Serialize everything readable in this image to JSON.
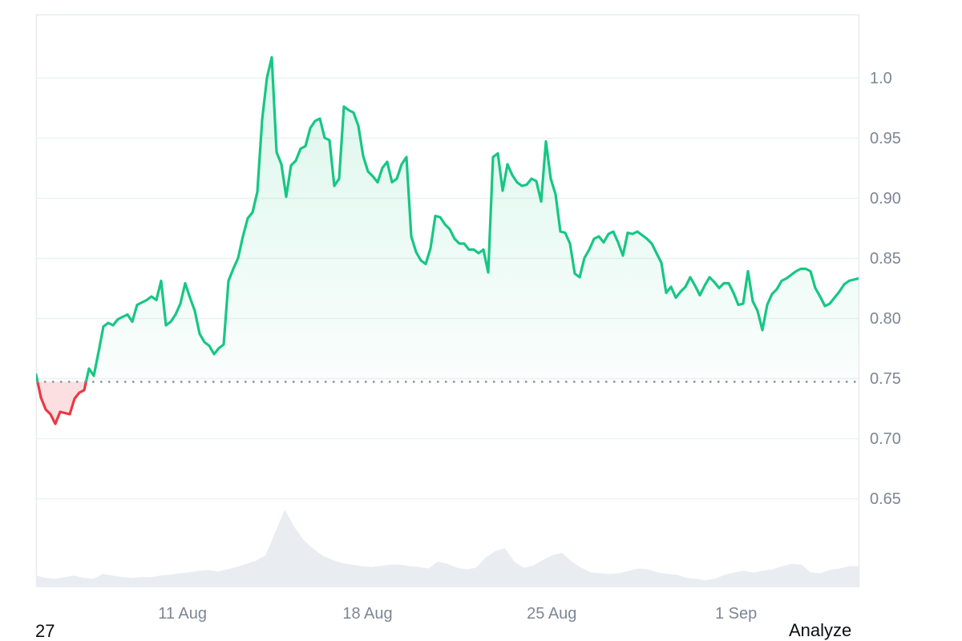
{
  "page": {
    "bottom_left_text": "27",
    "bottom_right_text": "Analyze"
  },
  "chart_data": {
    "type": "area",
    "title": "",
    "xlabel": "",
    "ylabel": "",
    "grid": true,
    "legend": false,
    "x_tick_labels": [
      "11 Aug",
      "18 Aug",
      "25 Aug",
      "1 Sep"
    ],
    "x_tick_positions": [
      0.178,
      0.403,
      0.627,
      0.851
    ],
    "y_ticks": [
      1.0,
      0.95,
      0.9,
      0.85,
      0.8,
      0.75,
      0.7,
      0.65
    ],
    "y_tick_labels": [
      "1.0",
      "0.95",
      "0.90",
      "0.85",
      "0.80",
      "0.75",
      "0.70",
      "0.65"
    ],
    "baseline_price": 0.747,
    "colors": {
      "up_line": "#16c784",
      "up_fill_top": "rgba(22,199,132,0.16)",
      "up_fill_bottom": "rgba(22,199,132,0.02)",
      "down_line": "#ea3943",
      "down_fill": "rgba(234,57,67,0.16)",
      "volume_fill": "#e9edf2",
      "grid_line": "#eef1f4",
      "axis_border": "#e7eaed",
      "tick_label": "#7d8694",
      "baseline_dots": "#8d949c"
    },
    "price_series": {
      "prices": [
        0.753,
        0.734,
        0.724,
        0.72,
        0.712,
        0.722,
        0.721,
        0.72,
        0.733,
        0.738,
        0.74,
        0.758,
        0.752,
        0.772,
        0.793,
        0.796,
        0.794,
        0.799,
        0.801,
        0.803,
        0.797,
        0.811,
        0.813,
        0.815,
        0.818,
        0.815,
        0.831,
        0.794,
        0.797,
        0.803,
        0.812,
        0.829,
        0.817,
        0.806,
        0.787,
        0.78,
        0.777,
        0.77,
        0.775,
        0.778,
        0.831,
        0.841,
        0.85,
        0.868,
        0.883,
        0.888,
        0.905,
        0.965,
        1.0,
        1.017,
        0.938,
        0.928,
        0.901,
        0.927,
        0.931,
        0.941,
        0.943,
        0.958,
        0.964,
        0.966,
        0.95,
        0.948,
        0.91,
        0.916,
        0.976,
        0.973,
        0.971,
        0.96,
        0.935,
        0.922,
        0.918,
        0.913,
        0.925,
        0.93,
        0.913,
        0.916,
        0.928,
        0.934,
        0.868,
        0.855,
        0.848,
        0.845,
        0.858,
        0.885,
        0.884,
        0.878,
        0.874,
        0.866,
        0.862,
        0.862,
        0.857,
        0.857,
        0.854,
        0.857,
        0.838,
        0.934,
        0.937,
        0.906,
        0.928,
        0.919,
        0.913,
        0.91,
        0.911,
        0.916,
        0.914,
        0.897,
        0.947,
        0.916,
        0.903,
        0.872,
        0.871,
        0.862,
        0.837,
        0.834,
        0.85,
        0.857,
        0.866,
        0.868,
        0.863,
        0.87,
        0.872,
        0.863,
        0.852,
        0.871,
        0.87,
        0.872,
        0.869,
        0.866,
        0.862,
        0.854,
        0.846,
        0.821,
        0.826,
        0.817,
        0.822,
        0.826,
        0.834,
        0.827,
        0.819,
        0.827,
        0.834,
        0.83,
        0.825,
        0.829,
        0.829,
        0.821,
        0.811,
        0.812,
        0.839,
        0.814,
        0.806,
        0.79,
        0.811,
        0.82,
        0.824,
        0.831,
        0.833,
        0.836,
        0.839,
        0.841,
        0.841,
        0.839,
        0.825,
        0.818,
        0.81,
        0.812,
        0.817,
        0.822,
        0.828,
        0.831,
        0.832,
        0.833
      ]
    },
    "volume_series": {
      "values_normalized": [
        0.15,
        0.12,
        0.11,
        0.13,
        0.15,
        0.12,
        0.11,
        0.17,
        0.15,
        0.13,
        0.12,
        0.13,
        0.13,
        0.15,
        0.16,
        0.18,
        0.19,
        0.21,
        0.22,
        0.2,
        0.23,
        0.26,
        0.3,
        0.34,
        0.41,
        0.7,
        0.99,
        0.77,
        0.6,
        0.49,
        0.4,
        0.35,
        0.31,
        0.29,
        0.27,
        0.26,
        0.27,
        0.29,
        0.29,
        0.27,
        0.26,
        0.24,
        0.33,
        0.3,
        0.25,
        0.23,
        0.25,
        0.38,
        0.46,
        0.5,
        0.33,
        0.25,
        0.28,
        0.35,
        0.41,
        0.44,
        0.33,
        0.25,
        0.19,
        0.18,
        0.17,
        0.18,
        0.21,
        0.24,
        0.23,
        0.19,
        0.17,
        0.16,
        0.12,
        0.11,
        0.09,
        0.11,
        0.16,
        0.19,
        0.21,
        0.19,
        0.21,
        0.23,
        0.27,
        0.3,
        0.29,
        0.19,
        0.18,
        0.22,
        0.24,
        0.27,
        0.27
      ]
    }
  }
}
